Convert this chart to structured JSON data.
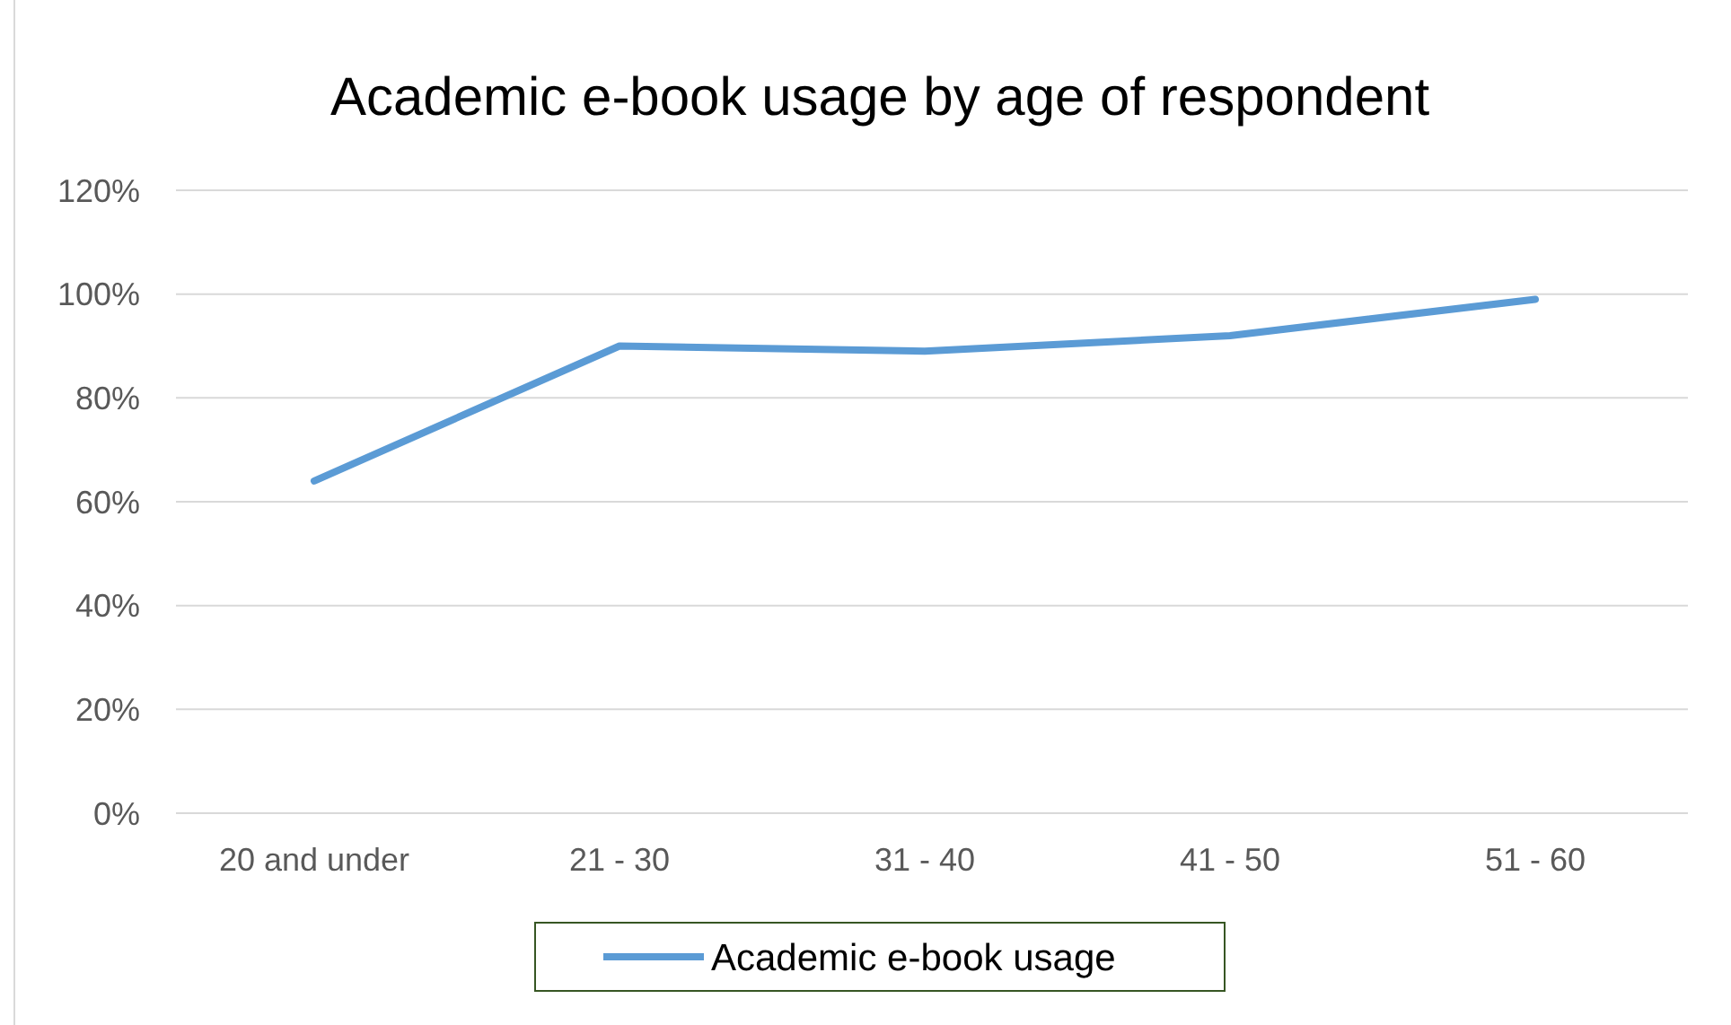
{
  "chart_data": {
    "type": "line",
    "title": "Academic e-book usage by age of respondent",
    "categories": [
      "20 and under",
      "21 - 30",
      "31 - 40",
      "41 - 50",
      "51 - 60"
    ],
    "series": [
      {
        "name": "Academic e-book usage",
        "color": "#5b9bd5",
        "values": [
          64,
          90,
          89,
          92,
          99
        ]
      }
    ],
    "ylim": [
      0,
      120
    ],
    "yticks": [
      {
        "value": 0,
        "label": "0%"
      },
      {
        "value": 20,
        "label": "20%"
      },
      {
        "value": 40,
        "label": "40%"
      },
      {
        "value": 60,
        "label": "60%"
      },
      {
        "value": 80,
        "label": "80%"
      },
      {
        "value": 100,
        "label": "100%"
      },
      {
        "value": 120,
        "label": "120%"
      }
    ],
    "grid": "y",
    "legend": "bottom",
    "marker": "none",
    "line_style": "solid"
  }
}
